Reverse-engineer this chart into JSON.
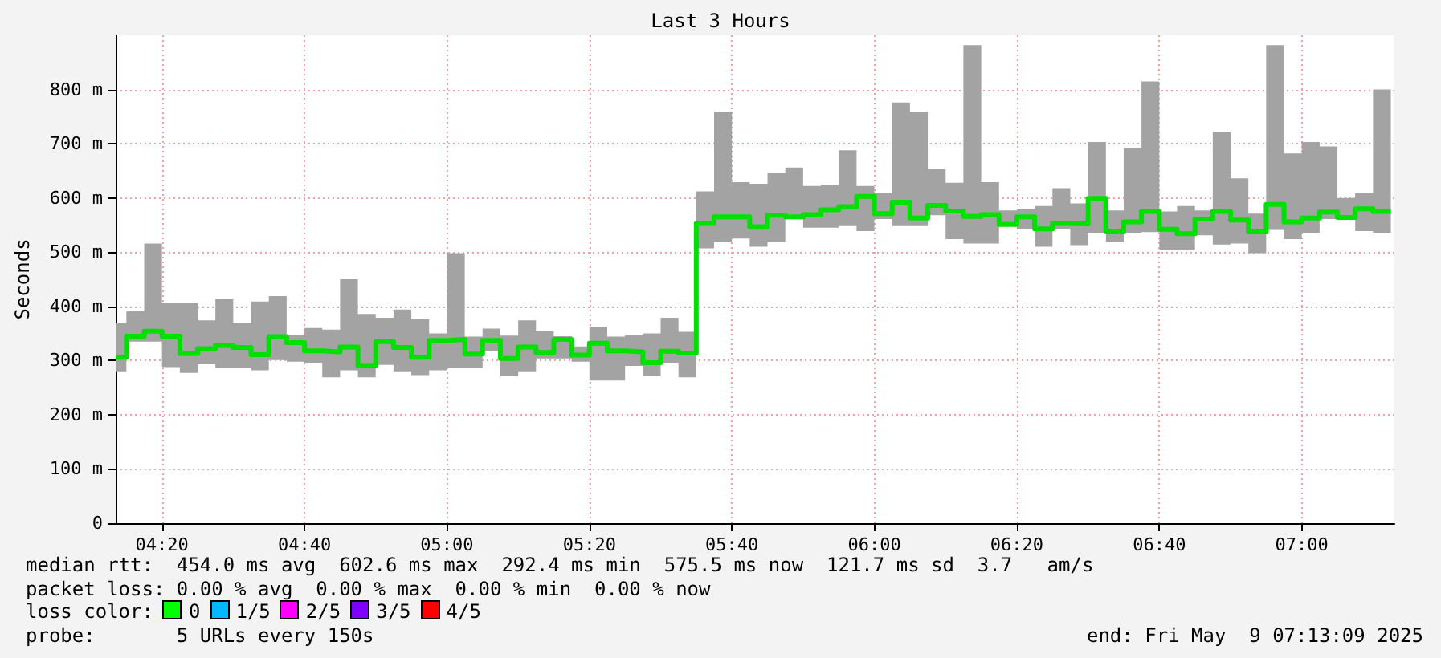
{
  "chart_data": {
    "type": "step",
    "title": "Last 3 Hours",
    "ylabel": "Seconds",
    "x": [
      4.225,
      4.25,
      4.2917,
      4.3333,
      4.375,
      4.4167,
      4.4583,
      4.5,
      4.5417,
      4.5833,
      4.625,
      4.6667,
      4.7083,
      4.75,
      4.7917,
      4.8333,
      4.875,
      4.9167,
      4.9583,
      5,
      5.0417,
      5.0833,
      5.125,
      5.1667,
      5.2083,
      5.25,
      5.2917,
      5.3333,
      5.375,
      5.4167,
      5.4583,
      5.5,
      5.5417,
      5.5833,
      5.625,
      5.6667,
      5.7083,
      5.75,
      5.7917,
      5.8333,
      5.875,
      5.9167,
      5.9583,
      6,
      6.0417,
      6.0833,
      6.125,
      6.1667,
      6.2083,
      6.25,
      6.2917,
      6.3333,
      6.375,
      6.4167,
      6.4583,
      6.5,
      6.5417,
      6.5833,
      6.625,
      6.6667,
      6.7083,
      6.75,
      6.7917,
      6.8333,
      6.875,
      6.9167,
      6.9583,
      7,
      7.0417,
      7.0833,
      7.125,
      7.1667,
      7.2083
    ],
    "series": [
      {
        "color": "#00e000",
        "values": [
          306,
          345,
          354,
          345,
          313,
          322,
          328,
          324,
          311,
          344,
          333,
          318,
          316,
          325,
          291,
          335,
          324,
          306,
          337,
          339,
          312,
          337,
          304,
          325,
          315,
          339,
          310,
          332,
          318,
          316,
          296,
          317,
          314,
          553,
          565,
          565,
          547,
          568,
          565,
          569,
          578,
          584,
          603,
          571,
          592,
          563,
          586,
          576,
          566,
          569,
          551,
          565,
          543,
          553,
          552,
          599,
          539,
          556,
          575,
          542,
          534,
          561,
          575,
          559,
          538,
          588,
          556,
          563,
          574,
          564,
          580,
          575,
          575
        ],
        "lower": [
          280,
          335,
          335,
          288,
          277,
          294,
          286,
          286,
          282,
          301,
          298,
          296,
          269,
          282,
          269,
          292,
          280,
          273,
          282,
          286,
          286,
          318,
          271,
          280,
          304,
          304,
          298,
          263,
          263,
          290,
          271,
          296,
          269,
          507,
          519,
          525,
          510,
          519,
          561,
          545,
          545,
          548,
          539,
          561,
          548,
          548,
          568,
          524,
          516,
          516,
          548,
          543,
          510,
          543,
          513,
          536,
          519,
          536,
          537,
          504,
          504,
          531,
          514,
          516,
          498,
          541,
          524,
          536,
          561,
          561,
          539,
          536,
          536
        ],
        "upper": [
          369,
          391,
          516,
          406,
          406,
          374,
          413,
          369,
          409,
          419,
          347,
          360,
          357,
          450,
          386,
          379,
          394,
          376,
          350,
          498,
          344,
          359,
          346,
          374,
          354,
          345,
          326,
          362,
          344,
          347,
          350,
          379,
          353,
          612,
          759,
          629,
          626,
          647,
          656,
          622,
          624,
          688,
          622,
          609,
          776,
          759,
          653,
          628,
          882,
          629,
          577,
          580,
          585,
          618,
          590,
          703,
          577,
          692,
          815,
          575,
          585,
          577,
          722,
          636,
          571,
          882,
          682,
          703,
          695,
          600,
          609,
          800,
          800
        ]
      }
    ],
    "xlim": [
      4.225,
      7.2167
    ],
    "xticks": [
      {
        "value": 4.3333,
        "label": "04:20"
      },
      {
        "value": 4.6667,
        "label": "04:40"
      },
      {
        "value": 5,
        "label": "05:00"
      },
      {
        "value": 5.3333,
        "label": "05:20"
      },
      {
        "value": 5.6667,
        "label": "05:40"
      },
      {
        "value": 6,
        "label": "06:00"
      },
      {
        "value": 6.3333,
        "label": "06:20"
      },
      {
        "value": 6.6667,
        "label": "06:40"
      },
      {
        "value": 7,
        "label": "07:00"
      }
    ],
    "ylim": [
      0,
      900
    ],
    "yticks": [
      0,
      {
        "value": 100,
        "label": "100 m"
      },
      {
        "value": 200,
        "label": "200 m"
      },
      {
        "value": 300,
        "label": "300 m"
      },
      {
        "value": 400,
        "label": "400 m"
      },
      {
        "value": 500,
        "label": "500 m"
      },
      {
        "value": 600,
        "label": "600 m"
      },
      {
        "value": 700,
        "label": "700 m"
      },
      {
        "value": 800,
        "label": "800 m"
      }
    ],
    "grid": true,
    "marker": "none",
    "annotations": [
      "median rtt:  454.0 ms avg  602.6 ms max  292.4 ms min  575.5 ms now  121.7 ms sd  3.7   am/s",
      "packet loss: 0.00 % avg  0.00 % max  0.00 % min  0.00 % now",
      "loss color:",
      "0",
      "1/5",
      "2/5",
      "3/5",
      "4/5",
      "probe:       5 URLs every 150s",
      "end: Fri May  9 07:13:09 2025"
    ]
  }
}
